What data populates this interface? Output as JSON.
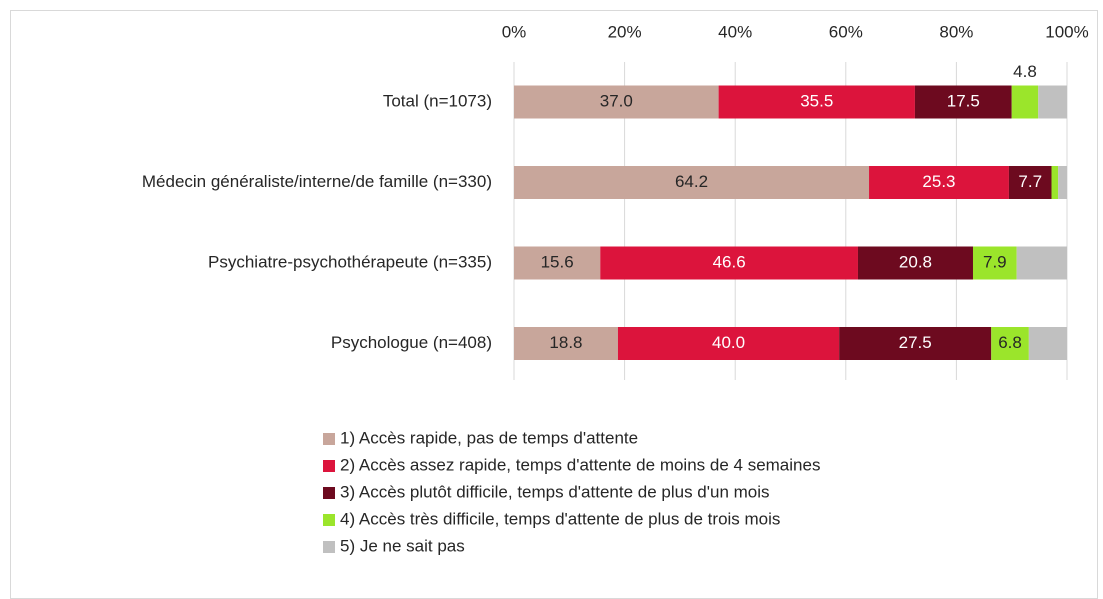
{
  "chart_data": {
    "type": "stacked-barh",
    "categories": [
      "Total (n=1073)",
      "Médecin généraliste/interne/de famille (n=330)",
      "Psychiatre-psychothérapeute (n=335)",
      "Psychologue (n=408)"
    ],
    "series": [
      {
        "name": "1) Accès rapide, pas de temps d'attente",
        "color": "#c8a69b",
        "values": [
          37.0,
          64.2,
          15.6,
          18.8
        ],
        "value_labels": [
          "37.0",
          "64.2",
          "15.6",
          "18.8"
        ]
      },
      {
        "name": "2) Accès assez rapide, temps d'attente de moins de 4 semaines",
        "color": "#dc143c",
        "values": [
          35.5,
          25.3,
          46.6,
          40.0
        ],
        "value_labels": [
          "35.5",
          "25.3",
          "46.6",
          "40.0"
        ]
      },
      {
        "name": "3) Accès plutôt difficile, temps d'attente de plus d'un mois",
        "color": "#6d0a1f",
        "values": [
          17.5,
          7.7,
          20.8,
          27.5
        ],
        "value_labels": [
          "17.5",
          "7.7",
          "20.8",
          "27.5"
        ]
      },
      {
        "name": "4) Accès très difficile, temps d'attente de plus de trois mois",
        "color": "#9be52b",
        "values": [
          4.8,
          1.2,
          7.9,
          6.8
        ],
        "value_labels": [
          "4.8",
          null,
          "7.9",
          "6.8"
        ]
      },
      {
        "name": "5) Je ne sait pas",
        "color": "#c0c0c0",
        "values": [
          5.2,
          1.6,
          9.1,
          6.9
        ]
      }
    ],
    "xlim": [
      0,
      100
    ],
    "xticks": [
      {
        "value": 0,
        "label": "0%"
      },
      {
        "value": 20,
        "label": "20%"
      },
      {
        "value": 40,
        "label": "40%"
      },
      {
        "value": 60,
        "label": "60%"
      },
      {
        "value": 80,
        "label": "80%"
      },
      {
        "value": 100,
        "label": "100%"
      }
    ],
    "grid": true
  }
}
